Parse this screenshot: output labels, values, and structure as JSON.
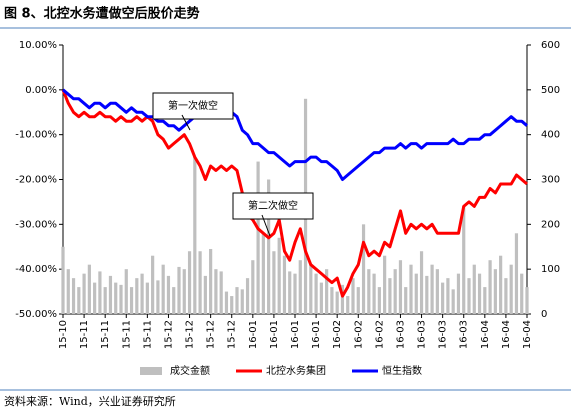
{
  "chart_data": {
    "type": "combo",
    "title": "图 8、北控水务遭做空后股价走势",
    "source": "资料来源：Wind，兴业证券研究所",
    "annotations": [
      "第一次做空",
      "第二次做空"
    ],
    "categories": [
      "15-10",
      null,
      null,
      null,
      "15-11",
      null,
      null,
      null,
      "15-11",
      null,
      null,
      null,
      "15-11",
      null,
      null,
      null,
      "15-11",
      null,
      null,
      null,
      "15-12",
      null,
      null,
      null,
      "15-12",
      null,
      null,
      null,
      "15-12",
      null,
      null,
      null,
      "15-12",
      null,
      null,
      null,
      "16-01",
      null,
      null,
      null,
      "16-01",
      null,
      null,
      null,
      "16-01",
      null,
      null,
      null,
      "16-01",
      null,
      null,
      null,
      "16-02",
      null,
      null,
      null,
      "16-02",
      null,
      null,
      null,
      "16-02",
      null,
      null,
      null,
      "16-03",
      null,
      null,
      null,
      "16-03",
      null,
      null,
      null,
      "16-03",
      null,
      null,
      null,
      "16-03",
      null,
      null,
      null,
      "16-04",
      null,
      null,
      null,
      "16-04",
      null,
      null,
      null,
      "16-04"
    ],
    "series": [
      {
        "name": "成交金额",
        "type": "bar",
        "axis": "y2",
        "color": "#bfbfbf",
        "values": [
          150,
          100,
          80,
          60,
          90,
          110,
          70,
          95,
          60,
          85,
          70,
          65,
          100,
          60,
          80,
          90,
          70,
          130,
          75,
          110,
          85,
          60,
          105,
          100,
          140,
          350,
          140,
          85,
          145,
          100,
          95,
          50,
          40,
          60,
          55,
          80,
          120,
          340,
          180,
          300,
          140,
          170,
          130,
          95,
          90,
          120,
          480,
          110,
          90,
          70,
          100,
          60,
          50,
          65,
          40,
          80,
          60,
          200,
          100,
          90,
          60,
          130,
          80,
          100,
          120,
          60,
          110,
          90,
          140,
          85,
          110,
          100,
          70,
          80,
          55,
          90,
          240,
          80,
          110,
          90,
          60,
          120,
          100,
          130,
          80,
          110,
          180,
          90,
          60
        ]
      },
      {
        "name": "北控水务集团",
        "type": "line",
        "color": "#ff0000",
        "values": [
          0,
          -3,
          -5,
          -6,
          -5,
          -6,
          -6,
          -5,
          -6,
          -6,
          -7,
          -6,
          -7,
          -7,
          -6,
          -7,
          -6,
          -7,
          -10,
          -11,
          -13,
          -12,
          -11,
          -10,
          -12,
          -15,
          -17,
          -20,
          -17,
          -18,
          -17,
          -18,
          -17,
          -18,
          -23,
          -28,
          -29,
          -31,
          -32,
          -33,
          -32,
          -29,
          -36,
          -38,
          -34,
          -31,
          -36,
          -39,
          -40,
          -41,
          -42,
          -43,
          -42,
          -46,
          -44,
          -41,
          -39,
          -34,
          -37,
          -36,
          -37,
          -34,
          -35,
          -31,
          -27,
          -32,
          -30,
          -31,
          -30,
          -31,
          -30,
          -32,
          -32,
          -32,
          -32,
          -32,
          -26,
          -25,
          -26,
          -24,
          -24,
          -22,
          -23,
          -21,
          -21,
          -21,
          -19,
          -20,
          -21
        ]
      },
      {
        "name": "恒生指数",
        "type": "line",
        "color": "#0000ff",
        "values": [
          0,
          -1,
          -2,
          -2,
          -3,
          -4,
          -3,
          -3,
          -4,
          -3,
          -3,
          -4,
          -5,
          -4,
          -5,
          -5,
          -6,
          -6,
          -7,
          -7,
          -8,
          -8,
          -9,
          -8,
          -7,
          -6,
          -5,
          -5,
          -5,
          -6,
          -5,
          -5,
          -5,
          -6,
          -9,
          -10,
          -12,
          -12,
          -13,
          -14,
          -14,
          -15,
          -16,
          -17,
          -16,
          -16,
          -16,
          -15,
          -15,
          -16,
          -16,
          -17,
          -18,
          -20,
          -19,
          -18,
          -17,
          -16,
          -15,
          -14,
          -14,
          -13,
          -13,
          -13,
          -12,
          -13,
          -12,
          -12,
          -13,
          -12,
          -12,
          -12,
          -12,
          -12,
          -11,
          -12,
          -12,
          -11,
          -11,
          -11,
          -10,
          -10,
          -9,
          -8,
          -7,
          -6,
          -7,
          -7,
          -8
        ]
      }
    ],
    "ylim": [
      -50,
      10
    ],
    "yticks": [
      {
        "value": -50,
        "label": "-50.00%"
      },
      {
        "value": -40,
        "label": "-40.00%"
      },
      {
        "value": -30,
        "label": "-30.00%"
      },
      {
        "value": -20,
        "label": "-20.00%"
      },
      {
        "value": -10,
        "label": "-10.00%"
      },
      {
        "value": 0,
        "label": "0.00%"
      },
      {
        "value": 10,
        "label": "10.00%"
      }
    ],
    "y2lim": [
      0,
      600
    ],
    "y2ticks": [
      0,
      100,
      200,
      300,
      400,
      500,
      600
    ],
    "legend": "bottom"
  }
}
